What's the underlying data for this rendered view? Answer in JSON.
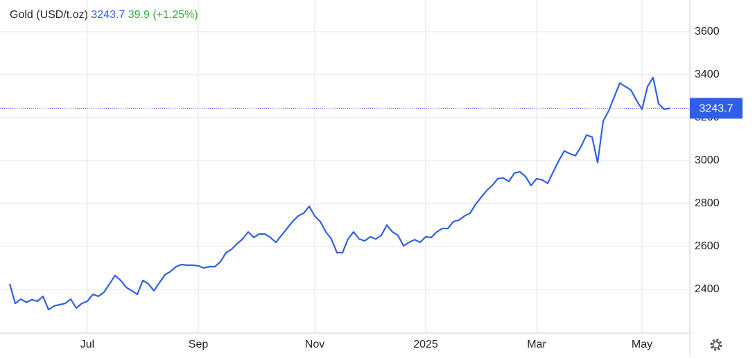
{
  "chart_data": {
    "type": "line",
    "title": "Gold (USD/t.oz)",
    "price": 3243.7,
    "change": 39.9,
    "change_percent_label": "(+1.25%)",
    "categories": [
      null,
      null,
      null,
      null,
      null,
      null,
      null,
      null,
      null,
      null,
      null,
      null,
      null,
      null,
      "Jul",
      null,
      null,
      null,
      null,
      null,
      null,
      null,
      null,
      null,
      null,
      null,
      null,
      null,
      null,
      null,
      null,
      null,
      null,
      null,
      "Sep",
      null,
      null,
      null,
      null,
      null,
      null,
      null,
      null,
      null,
      null,
      null,
      null,
      null,
      null,
      null,
      null,
      null,
      null,
      null,
      null,
      "Nov",
      null,
      null,
      null,
      null,
      null,
      null,
      null,
      null,
      null,
      null,
      null,
      null,
      null,
      null,
      null,
      null,
      null,
      null,
      null,
      "2025",
      null,
      null,
      null,
      null,
      null,
      null,
      null,
      null,
      null,
      null,
      null,
      null,
      null,
      null,
      null,
      null,
      null,
      null,
      null,
      "Mar",
      null,
      null,
      null,
      null,
      null,
      null,
      null,
      null,
      null,
      null,
      null,
      null,
      null,
      null,
      null,
      null,
      null,
      null,
      "May",
      null,
      null,
      null,
      null,
      null
    ],
    "series": [
      {
        "name": "Gold",
        "color": "#2f5fe8",
        "values": [
          2426,
          2335,
          2355,
          2340,
          2352,
          2345,
          2368,
          2306,
          2323,
          2329,
          2335,
          2355,
          2313,
          2335,
          2345,
          2377,
          2368,
          2387,
          2426,
          2465,
          2442,
          2410,
          2394,
          2377,
          2442,
          2426,
          2394,
          2432,
          2468,
          2484,
          2506,
          2516,
          2513,
          2513,
          2510,
          2500,
          2506,
          2506,
          2529,
          2571,
          2587,
          2613,
          2635,
          2668,
          2642,
          2658,
          2658,
          2642,
          2619,
          2652,
          2684,
          2716,
          2742,
          2755,
          2787,
          2742,
          2716,
          2668,
          2635,
          2571,
          2571,
          2635,
          2668,
          2635,
          2626,
          2645,
          2635,
          2652,
          2700,
          2668,
          2652,
          2603,
          2619,
          2632,
          2619,
          2645,
          2642,
          2668,
          2684,
          2684,
          2716,
          2723,
          2742,
          2755,
          2797,
          2829,
          2861,
          2884,
          2916,
          2919,
          2903,
          2942,
          2948,
          2926,
          2884,
          2916,
          2910,
          2894,
          2948,
          3000,
          3045,
          3032,
          3023,
          3065,
          3119,
          3110,
          2990,
          3184,
          3232,
          3297,
          3361,
          3345,
          3329,
          3281,
          3239,
          3345,
          3387,
          3265,
          3239,
          3243.7
        ]
      }
    ],
    "ylim": [
      2200,
      3748
    ],
    "yticks": [
      2400,
      2600,
      2800,
      3000,
      3200,
      3400,
      3600
    ],
    "grid": true
  }
}
